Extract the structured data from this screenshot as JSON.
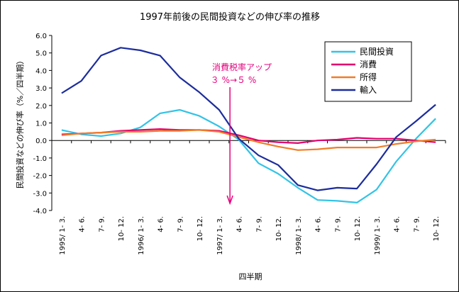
{
  "chart_data": {
    "type": "line",
    "title": "1997年前後の民間投資などの伸び率の推移",
    "xlabel": "四半期",
    "ylabel": "民間投資などの伸び率（%／四半期）",
    "ylim": [
      -4.0,
      6.0
    ],
    "yticks": [
      "6.0",
      "5.0",
      "4.0",
      "3.0",
      "2.0",
      "1.0",
      "0.0",
      "-1.0",
      "-2.0",
      "-3.0",
      "-4.0"
    ],
    "categories": [
      "1995/ 1- 3.",
      "4- 6.",
      "7- 9.",
      "10- 12.",
      "1996/ 1- 3.",
      "4- 6.",
      "7- 9.",
      "10- 12.",
      "1997/ 1- 3.",
      "4- 6.",
      "7- 9.",
      "10- 12.",
      "1998/ 1- 3.",
      "4- 6.",
      "7- 9.",
      "10- 12.",
      "1999/ 1- 3.",
      "4- 6.",
      "7- 9.",
      "10- 12."
    ],
    "series": [
      {
        "name": "民間投資",
        "color": "#33c3e6",
        "values": [
          0.6,
          0.35,
          0.25,
          0.4,
          0.75,
          1.55,
          1.75,
          1.4,
          0.8,
          0.05,
          -1.3,
          -1.9,
          -2.7,
          -3.4,
          -3.45,
          -3.55,
          -2.8,
          -1.2,
          0.1,
          1.25
        ]
      },
      {
        "name": "消費",
        "color": "#e0006e",
        "values": [
          0.35,
          0.4,
          0.45,
          0.55,
          0.6,
          0.65,
          0.6,
          0.6,
          0.55,
          0.3,
          0.0,
          -0.1,
          -0.15,
          0.0,
          0.05,
          0.15,
          0.1,
          0.1,
          0.0,
          -0.1
        ]
      },
      {
        "name": "所得",
        "color": "#f07d28",
        "values": [
          0.3,
          0.4,
          0.45,
          0.5,
          0.5,
          0.55,
          0.55,
          0.6,
          0.5,
          0.2,
          -0.1,
          -0.35,
          -0.55,
          -0.5,
          -0.4,
          -0.4,
          -0.4,
          -0.2,
          -0.05,
          0.05
        ]
      },
      {
        "name": "輸入",
        "color": "#1c2d9c",
        "values": [
          2.7,
          3.4,
          4.85,
          5.3,
          5.15,
          4.85,
          3.6,
          2.75,
          1.75,
          0.1,
          -0.85,
          -1.4,
          -2.55,
          -2.85,
          -2.7,
          -2.75,
          -1.35,
          0.2,
          1.1,
          2.05
        ]
      }
    ],
    "annotation": {
      "line1": "消費税率アップ",
      "line2": "３ %→５ %",
      "category_index": 9
    },
    "legend_position": "top-right",
    "grid": false
  }
}
